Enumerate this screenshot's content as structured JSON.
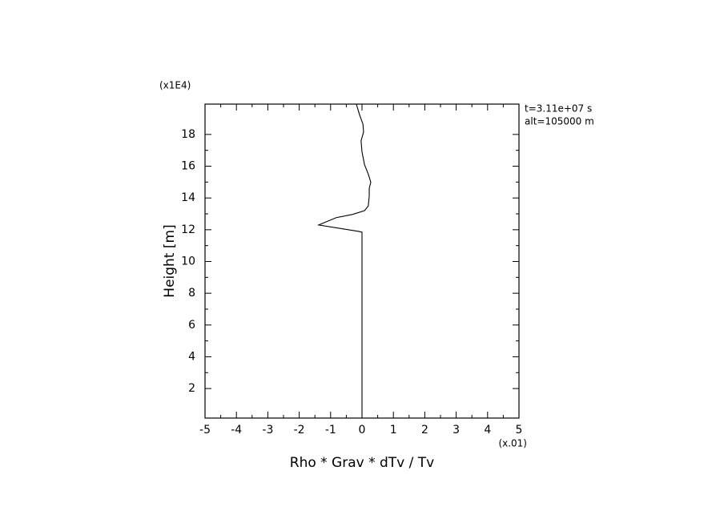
{
  "chart_data": {
    "type": "line",
    "xlabel": "Rho * Grav * dTv / Tv",
    "ylabel": "Height [m]",
    "x_multiplier": "(x.01)",
    "y_multiplier": "(x1E4)",
    "annotations": [
      "t=3.11e+07 s",
      "alt=105000 m"
    ],
    "xlim": [
      -5,
      5
    ],
    "xticks": [
      -5,
      -4,
      -3,
      -2,
      -1,
      0,
      1,
      2,
      3,
      4,
      5
    ],
    "ylim": [
      0.14,
      19.91
    ],
    "yticks": [
      2,
      4,
      6,
      8,
      10,
      12,
      14,
      16,
      18
    ],
    "series": [
      {
        "color": "#000000",
        "x": [
          0,
          0,
          -0.12,
          -1.38,
          -0.82,
          -0.31,
          0.08,
          0.2,
          0.23,
          0.23,
          0.28,
          0.2,
          0.08,
          0,
          -0.03,
          0.05,
          0.03,
          -0.08,
          -0.18
        ],
        "values": [
          0.2,
          11.85,
          11.9,
          12.3,
          12.76,
          12.96,
          13.2,
          13.5,
          14.1,
          14.6,
          15,
          15.5,
          16.1,
          16.9,
          17.6,
          18.15,
          18.65,
          19.25,
          19.91
        ]
      }
    ]
  }
}
